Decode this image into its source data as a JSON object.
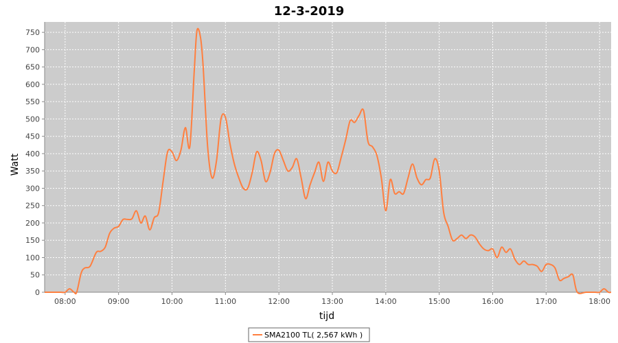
{
  "chart_data": {
    "type": "line",
    "title": "12-3-2019",
    "xlabel": "tijd",
    "ylabel": "Watt",
    "xlim": [
      "07:37",
      "18:13"
    ],
    "ylim": [
      0,
      780
    ],
    "x_ticks": [
      "08:00",
      "09:00",
      "10:00",
      "11:00",
      "12:00",
      "13:00",
      "14:00",
      "15:00",
      "16:00",
      "17:00",
      "18:00"
    ],
    "y_ticks": [
      0,
      50,
      100,
      150,
      200,
      250,
      300,
      350,
      400,
      450,
      500,
      550,
      600,
      650,
      700,
      750
    ],
    "grid": true,
    "legend_position": "bottom-center",
    "colors": {
      "series": "#ff7f3f",
      "plot_bg": "#cccccc",
      "grid": "#ffffff"
    },
    "series": [
      {
        "name": "SMA2100 TL( 2,567 kWh )",
        "points": [
          [
            "07:37",
            0
          ],
          [
            "07:45",
            0
          ],
          [
            "07:55",
            0
          ],
          [
            "08:00",
            0
          ],
          [
            "08:05",
            10
          ],
          [
            "08:10",
            0
          ],
          [
            "08:13",
            0
          ],
          [
            "08:18",
            55
          ],
          [
            "08:22",
            70
          ],
          [
            "08:28",
            75
          ],
          [
            "08:35",
            115
          ],
          [
            "08:40",
            118
          ],
          [
            "08:45",
            130
          ],
          [
            "08:50",
            170
          ],
          [
            "08:55",
            185
          ],
          [
            "09:00",
            190
          ],
          [
            "09:05",
            210
          ],
          [
            "09:10",
            210
          ],
          [
            "09:15",
            212
          ],
          [
            "09:20",
            235
          ],
          [
            "09:25",
            200
          ],
          [
            "09:30",
            220
          ],
          [
            "09:35",
            180
          ],
          [
            "09:40",
            215
          ],
          [
            "09:45",
            230
          ],
          [
            "09:50",
            320
          ],
          [
            "09:55",
            405
          ],
          [
            "10:00",
            405
          ],
          [
            "10:05",
            380
          ],
          [
            "10:10",
            410
          ],
          [
            "10:15",
            475
          ],
          [
            "10:20",
            420
          ],
          [
            "10:25",
            640
          ],
          [
            "10:28",
            755
          ],
          [
            "10:32",
            735
          ],
          [
            "10:35",
            650
          ],
          [
            "10:40",
            420
          ],
          [
            "10:45",
            330
          ],
          [
            "10:50",
            380
          ],
          [
            "10:55",
            500
          ],
          [
            "11:00",
            505
          ],
          [
            "11:05",
            430
          ],
          [
            "11:10",
            370
          ],
          [
            "11:15",
            330
          ],
          [
            "11:20",
            300
          ],
          [
            "11:25",
            300
          ],
          [
            "11:30",
            345
          ],
          [
            "11:35",
            405
          ],
          [
            "11:40",
            380
          ],
          [
            "11:45",
            320
          ],
          [
            "11:50",
            345
          ],
          [
            "11:55",
            400
          ],
          [
            "12:00",
            410
          ],
          [
            "12:05",
            380
          ],
          [
            "12:10",
            350
          ],
          [
            "12:15",
            360
          ],
          [
            "12:20",
            385
          ],
          [
            "12:25",
            330
          ],
          [
            "12:30",
            270
          ],
          [
            "12:35",
            310
          ],
          [
            "12:40",
            345
          ],
          [
            "12:45",
            375
          ],
          [
            "12:50",
            320
          ],
          [
            "12:55",
            375
          ],
          [
            "13:00",
            350
          ],
          [
            "13:05",
            345
          ],
          [
            "13:10",
            390
          ],
          [
            "13:15",
            440
          ],
          [
            "13:20",
            495
          ],
          [
            "13:25",
            490
          ],
          [
            "13:30",
            510
          ],
          [
            "13:35",
            525
          ],
          [
            "13:40",
            435
          ],
          [
            "13:45",
            420
          ],
          [
            "13:50",
            395
          ],
          [
            "13:55",
            330
          ],
          [
            "14:00",
            235
          ],
          [
            "14:05",
            325
          ],
          [
            "14:10",
            285
          ],
          [
            "14:15",
            290
          ],
          [
            "14:20",
            285
          ],
          [
            "14:25",
            330
          ],
          [
            "14:30",
            370
          ],
          [
            "14:35",
            330
          ],
          [
            "14:40",
            310
          ],
          [
            "14:45",
            325
          ],
          [
            "14:50",
            330
          ],
          [
            "14:55",
            385
          ],
          [
            "15:00",
            350
          ],
          [
            "15:05",
            230
          ],
          [
            "15:10",
            190
          ],
          [
            "15:15",
            150
          ],
          [
            "15:20",
            155
          ],
          [
            "15:25",
            165
          ],
          [
            "15:30",
            155
          ],
          [
            "15:35",
            165
          ],
          [
            "15:40",
            160
          ],
          [
            "15:45",
            140
          ],
          [
            "15:50",
            125
          ],
          [
            "15:55",
            120
          ],
          [
            "16:00",
            125
          ],
          [
            "16:05",
            100
          ],
          [
            "16:10",
            130
          ],
          [
            "16:15",
            115
          ],
          [
            "16:20",
            125
          ],
          [
            "16:25",
            95
          ],
          [
            "16:30",
            80
          ],
          [
            "16:35",
            90
          ],
          [
            "16:40",
            80
          ],
          [
            "16:45",
            80
          ],
          [
            "16:50",
            75
          ],
          [
            "16:55",
            60
          ],
          [
            "17:00",
            80
          ],
          [
            "17:05",
            80
          ],
          [
            "17:10",
            70
          ],
          [
            "17:15",
            35
          ],
          [
            "17:20",
            40
          ],
          [
            "17:25",
            45
          ],
          [
            "17:30",
            50
          ],
          [
            "17:35",
            0
          ],
          [
            "17:45",
            0
          ],
          [
            "17:55",
            0
          ],
          [
            "18:00",
            0
          ],
          [
            "18:05",
            10
          ],
          [
            "18:10",
            0
          ],
          [
            "18:13",
            0
          ]
        ]
      }
    ]
  }
}
